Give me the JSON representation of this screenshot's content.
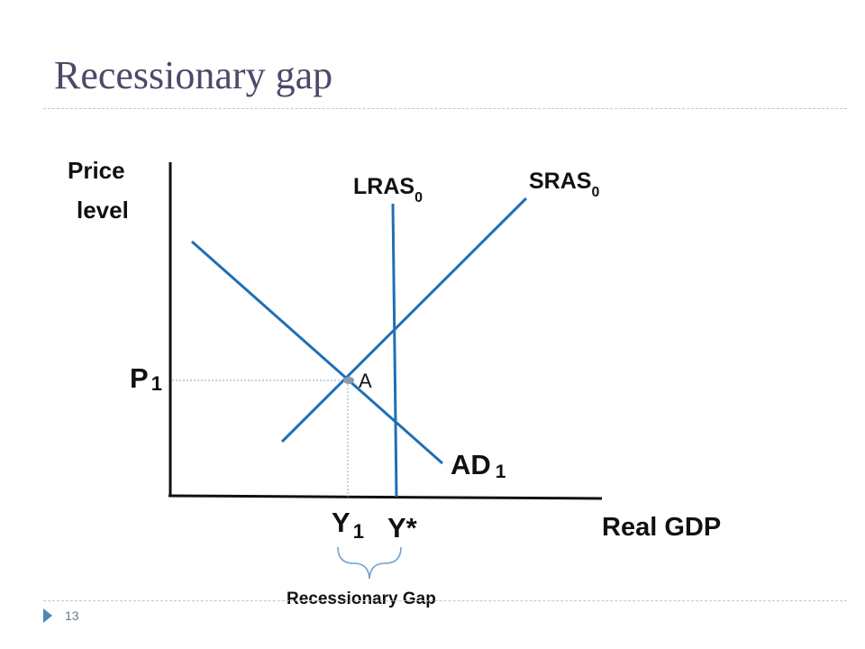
{
  "slide": {
    "title": "Recessionary gap",
    "number": "13"
  },
  "diagram": {
    "y_axis_label_line1": "Price",
    "y_axis_label_line2": "level",
    "x_axis_label": "Real GDP",
    "lras_label": "LRAS",
    "lras_subscript": "0",
    "sras_label": "SRAS",
    "sras_subscript": "0",
    "ad_label": "AD",
    "ad_subscript": "1",
    "equilibrium_point_label": "A",
    "price_label": "P",
    "price_subscript": "1",
    "output_label": "Y",
    "output_subscript": "1",
    "potential_output_label": "Y*",
    "gap_label": "Recessionary Gap",
    "colors": {
      "curve": "#1f6fb5",
      "axis": "#111111",
      "guide": "#9aa4ae",
      "bracket": "#6fa0cf",
      "point": "#8a9bb0"
    }
  }
}
